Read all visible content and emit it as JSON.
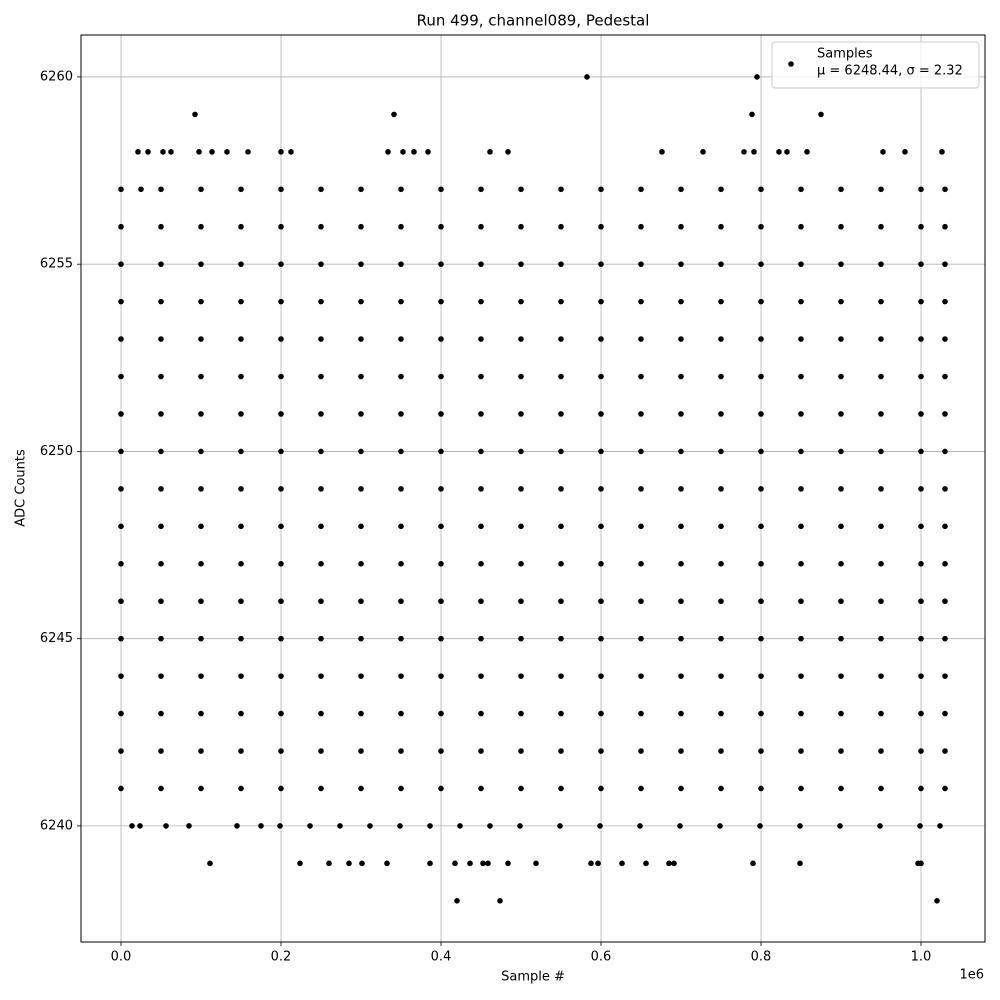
{
  "chart_data": {
    "type": "scatter",
    "title": "Run 499, channel089, Pedestal",
    "xlabel": "Sample #",
    "ylabel": "ADC Counts",
    "x_offset_label": "1e6",
    "xlim": [
      -50000,
      1080000
    ],
    "ylim": [
      6236.9,
      6261.12
    ],
    "xticks": [
      {
        "value": 0,
        "label": "0.0"
      },
      {
        "value": 200000,
        "label": "0.2"
      },
      {
        "value": 400000,
        "label": "0.4"
      },
      {
        "value": 600000,
        "label": "0.6"
      },
      {
        "value": 800000,
        "label": "0.8"
      },
      {
        "value": 1000000,
        "label": "1.0"
      }
    ],
    "yticks": [
      6240,
      6245,
      6250,
      6255,
      6260
    ],
    "grid": true,
    "legend": "upper right",
    "legend_note": "μ = 6248.44, σ = 2.32",
    "series": [
      {
        "name": "Samples",
        "color": "#000000",
        "x": [
          582500,
          795000,
          92500,
          341250,
          788750,
          875000,
          21250,
          33750,
          52500,
          62500,
          97500,
          113750,
          132500,
          158750,
          200000,
          212500,
          333750,
          352500,
          366250,
          383750,
          461250,
          483750,
          676250,
          727500,
          778750,
          791250,
          822500,
          832500,
          857500,
          952500,
          980000,
          1026250,
          111250,
          223750,
          260000,
          285000,
          301250,
          332500,
          386250,
          417500,
          436250,
          452500,
          458750,
          483750,
          518750,
          587500,
          596250,
          626250,
          656250,
          685000,
          691250,
          790000,
          848750,
          996250,
          1000000,
          420000,
          473750,
          1020000,
          13750,
          23750,
          56250,
          85000,
          145000,
          175000,
          198750,
          236250,
          273750,
          311250,
          348750,
          386250,
          423750,
          461250,
          498750,
          548750,
          598750,
          648750,
          698750,
          748750,
          798750,
          848750,
          898750,
          948750,
          998750,
          1023750,
          0,
          25000,
          50000,
          100000,
          150000,
          200000,
          250000,
          300000,
          350000,
          400000,
          450000,
          500000,
          550000,
          600000,
          650000,
          700000,
          750000,
          800000,
          850000,
          900000,
          950000,
          1000000,
          1030000,
          0,
          50000,
          100000,
          150000,
          200000,
          250000,
          300000,
          350000,
          400000,
          450000,
          500000,
          550000,
          600000,
          650000,
          700000,
          750000,
          800000,
          850000,
          900000,
          950000,
          1000000,
          1030000,
          0,
          50000,
          100000,
          150000,
          200000,
          250000,
          300000,
          350000,
          400000,
          450000,
          500000,
          550000,
          600000,
          650000,
          700000,
          750000,
          800000,
          850000,
          900000,
          950000,
          1000000,
          1030000,
          0,
          50000,
          100000,
          150000,
          200000,
          250000,
          300000,
          350000,
          400000,
          450000,
          500000,
          550000,
          600000,
          650000,
          700000,
          750000,
          800000,
          850000,
          900000,
          950000,
          1000000,
          1030000,
          0,
          50000,
          100000,
          150000,
          200000,
          250000,
          300000,
          350000,
          400000,
          450000,
          500000,
          550000,
          600000,
          650000,
          700000,
          750000,
          800000,
          850000,
          900000,
          950000,
          1000000,
          1030000,
          0,
          50000,
          100000,
          150000,
          200000,
          250000,
          300000,
          350000,
          400000,
          450000,
          500000,
          550000,
          600000,
          650000,
          700000,
          750000,
          800000,
          850000,
          900000,
          950000,
          1000000,
          1030000,
          0,
          50000,
          100000,
          150000,
          200000,
          250000,
          300000,
          350000,
          400000,
          450000,
          500000,
          550000,
          600000,
          650000,
          700000,
          750000,
          800000,
          850000,
          900000,
          950000,
          1000000,
          1030000,
          0,
          50000,
          100000,
          150000,
          200000,
          250000,
          300000,
          350000,
          400000,
          450000,
          500000,
          550000,
          600000,
          650000,
          700000,
          750000,
          800000,
          850000,
          900000,
          950000,
          1000000,
          1030000,
          0,
          50000,
          100000,
          150000,
          200000,
          250000,
          300000,
          350000,
          400000,
          450000,
          500000,
          550000,
          600000,
          650000,
          700000,
          750000,
          800000,
          850000,
          900000,
          950000,
          1000000,
          1030000,
          0,
          50000,
          100000,
          150000,
          200000,
          250000,
          300000,
          350000,
          400000,
          450000,
          500000,
          550000,
          600000,
          650000,
          700000,
          750000,
          800000,
          850000,
          900000,
          950000,
          1000000,
          1030000,
          0,
          50000,
          100000,
          150000,
          200000,
          250000,
          300000,
          350000,
          400000,
          450000,
          500000,
          550000,
          600000,
          650000,
          700000,
          750000,
          800000,
          850000,
          900000,
          950000,
          1000000,
          1030000,
          0,
          50000,
          100000,
          150000,
          200000,
          250000,
          300000,
          350000,
          400000,
          450000,
          500000,
          550000,
          600000,
          650000,
          700000,
          750000,
          800000,
          850000,
          900000,
          950000,
          1000000,
          1030000,
          0,
          50000,
          100000,
          150000,
          200000,
          250000,
          300000,
          350000,
          400000,
          450000,
          500000,
          550000,
          600000,
          650000,
          700000,
          750000,
          800000,
          850000,
          900000,
          950000,
          1000000,
          1030000,
          0,
          50000,
          100000,
          150000,
          200000,
          250000,
          300000,
          350000,
          400000,
          450000,
          500000,
          550000,
          600000,
          650000,
          700000,
          750000,
          800000,
          850000,
          900000,
          950000,
          1000000,
          1030000,
          0,
          50000,
          100000,
          150000,
          200000,
          250000,
          300000,
          350000,
          400000,
          450000,
          500000,
          550000,
          600000,
          650000,
          700000,
          750000,
          800000,
          850000,
          900000,
          950000,
          1000000,
          1030000,
          0,
          50000,
          100000,
          150000,
          200000,
          250000,
          300000,
          350000,
          400000,
          450000,
          500000,
          550000,
          600000,
          650000,
          700000,
          750000,
          800000,
          850000,
          900000,
          950000,
          1000000,
          1030000,
          0,
          50000,
          100000,
          150000,
          200000,
          250000,
          300000,
          350000,
          400000,
          450000,
          500000,
          550000,
          600000,
          650000,
          700000,
          750000,
          800000,
          850000,
          900000,
          950000,
          1000000,
          1030000
        ],
        "y": [
          6260,
          6260,
          6259,
          6259,
          6259,
          6259,
          6258,
          6258,
          6258,
          6258,
          6258,
          6258,
          6258,
          6258,
          6258,
          6258,
          6258,
          6258,
          6258,
          6258,
          6258,
          6258,
          6258,
          6258,
          6258,
          6258,
          6258,
          6258,
          6258,
          6258,
          6258,
          6258,
          6239,
          6239,
          6239,
          6239,
          6239,
          6239,
          6239,
          6239,
          6239,
          6239,
          6239,
          6239,
          6239,
          6239,
          6239,
          6239,
          6239,
          6239,
          6239,
          6239,
          6239,
          6239,
          6239,
          6238,
          6238,
          6238,
          6240,
          6240,
          6240,
          6240,
          6240,
          6240,
          6240,
          6240,
          6240,
          6240,
          6240,
          6240,
          6240,
          6240,
          6240,
          6240,
          6240,
          6240,
          6240,
          6240,
          6240,
          6240,
          6240,
          6240,
          6240,
          6240,
          6257,
          6257,
          6257,
          6257,
          6257,
          6257,
          6257,
          6257,
          6257,
          6257,
          6257,
          6257,
          6257,
          6257,
          6257,
          6257,
          6257,
          6257,
          6257,
          6257,
          6257,
          6257,
          6257,
          6256,
          6256,
          6256,
          6256,
          6256,
          6256,
          6256,
          6256,
          6256,
          6256,
          6256,
          6256,
          6256,
          6256,
          6256,
          6256,
          6256,
          6256,
          6256,
          6256,
          6256,
          6256,
          6255,
          6255,
          6255,
          6255,
          6255,
          6255,
          6255,
          6255,
          6255,
          6255,
          6255,
          6255,
          6255,
          6255,
          6255,
          6255,
          6255,
          6255,
          6255,
          6255,
          6255,
          6255,
          6254,
          6254,
          6254,
          6254,
          6254,
          6254,
          6254,
          6254,
          6254,
          6254,
          6254,
          6254,
          6254,
          6254,
          6254,
          6254,
          6254,
          6254,
          6254,
          6254,
          6254,
          6254,
          6253,
          6253,
          6253,
          6253,
          6253,
          6253,
          6253,
          6253,
          6253,
          6253,
          6253,
          6253,
          6253,
          6253,
          6253,
          6253,
          6253,
          6253,
          6253,
          6253,
          6253,
          6253,
          6252,
          6252,
          6252,
          6252,
          6252,
          6252,
          6252,
          6252,
          6252,
          6252,
          6252,
          6252,
          6252,
          6252,
          6252,
          6252,
          6252,
          6252,
          6252,
          6252,
          6252,
          6252,
          6251,
          6251,
          6251,
          6251,
          6251,
          6251,
          6251,
          6251,
          6251,
          6251,
          6251,
          6251,
          6251,
          6251,
          6251,
          6251,
          6251,
          6251,
          6251,
          6251,
          6251,
          6251,
          6250,
          6250,
          6250,
          6250,
          6250,
          6250,
          6250,
          6250,
          6250,
          6250,
          6250,
          6250,
          6250,
          6250,
          6250,
          6250,
          6250,
          6250,
          6250,
          6250,
          6250,
          6250,
          6249,
          6249,
          6249,
          6249,
          6249,
          6249,
          6249,
          6249,
          6249,
          6249,
          6249,
          6249,
          6249,
          6249,
          6249,
          6249,
          6249,
          6249,
          6249,
          6249,
          6249,
          6249,
          6248,
          6248,
          6248,
          6248,
          6248,
          6248,
          6248,
          6248,
          6248,
          6248,
          6248,
          6248,
          6248,
          6248,
          6248,
          6248,
          6248,
          6248,
          6248,
          6248,
          6248,
          6248,
          6247,
          6247,
          6247,
          6247,
          6247,
          6247,
          6247,
          6247,
          6247,
          6247,
          6247,
          6247,
          6247,
          6247,
          6247,
          6247,
          6247,
          6247,
          6247,
          6247,
          6247,
          6247,
          6246,
          6246,
          6246,
          6246,
          6246,
          6246,
          6246,
          6246,
          6246,
          6246,
          6246,
          6246,
          6246,
          6246,
          6246,
          6246,
          6246,
          6246,
          6246,
          6246,
          6246,
          6246,
          6245,
          6245,
          6245,
          6245,
          6245,
          6245,
          6245,
          6245,
          6245,
          6245,
          6245,
          6245,
          6245,
          6245,
          6245,
          6245,
          6245,
          6245,
          6245,
          6245,
          6245,
          6245,
          6244,
          6244,
          6244,
          6244,
          6244,
          6244,
          6244,
          6244,
          6244,
          6244,
          6244,
          6244,
          6244,
          6244,
          6244,
          6244,
          6244,
          6244,
          6244,
          6244,
          6244,
          6244,
          6243,
          6243,
          6243,
          6243,
          6243,
          6243,
          6243,
          6243,
          6243,
          6243,
          6243,
          6243,
          6243,
          6243,
          6243,
          6243,
          6243,
          6243,
          6243,
          6243,
          6243,
          6243,
          6242,
          6242,
          6242,
          6242,
          6242,
          6242,
          6242,
          6242,
          6242,
          6242,
          6242,
          6242,
          6242,
          6242,
          6242,
          6242,
          6242,
          6242,
          6242,
          6242,
          6242,
          6242,
          6241,
          6241,
          6241,
          6241,
          6241,
          6241,
          6241,
          6241,
          6241,
          6241,
          6241,
          6241,
          6241,
          6241,
          6241,
          6241,
          6241,
          6241,
          6241,
          6241,
          6241,
          6241
        ]
      }
    ]
  }
}
